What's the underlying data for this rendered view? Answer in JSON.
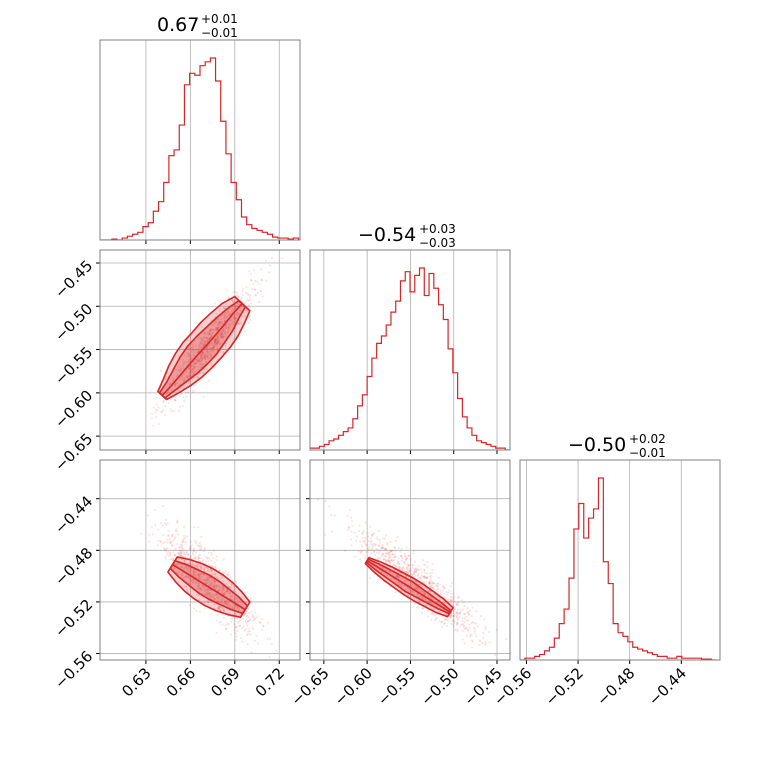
{
  "figure": {
    "accent_color": "#d62728",
    "grid_color": "#b0b0b0",
    "axis_color": "#808080"
  },
  "chart_data": {
    "type": "corner",
    "parameters": 3,
    "color": "#d62728",
    "grid": true,
    "titles": [
      {
        "value": "0.67",
        "plus": "+0.01",
        "minus": "−0.01"
      },
      {
        "value": "−0.54",
        "plus": "+0.03",
        "minus": "−0.03"
      },
      {
        "value": "−0.50",
        "plus": "+0.02",
        "minus": "−0.01"
      }
    ],
    "ranges": [
      [
        0.599,
        0.734
      ],
      [
        -0.666,
        -0.435
      ],
      [
        -0.565,
        -0.41
      ]
    ],
    "ticks": [
      {
        "values": [
          0.63,
          0.66,
          0.69,
          0.72
        ],
        "labels": [
          "0.63",
          "0.66",
          "0.69",
          "0.72"
        ]
      },
      {
        "values": [
          -0.65,
          -0.6,
          -0.55,
          -0.5,
          -0.45
        ],
        "labels": [
          "−0.65",
          "−0.60",
          "−0.55",
          "−0.50",
          "−0.45"
        ]
      },
      {
        "values": [
          -0.56,
          -0.52,
          -0.48,
          -0.44
        ],
        "labels": [
          "−0.56",
          "−0.52",
          "−0.48",
          "−0.44"
        ]
      }
    ],
    "correlations": {
      "1_0": 0.93,
      "2_0": -0.85,
      "2_1": -0.9
    },
    "histograms": [
      {
        "x": [
          0.6,
          0.6035,
          0.607,
          0.6105,
          0.614,
          0.6175,
          0.621,
          0.6245,
          0.628,
          0.6315,
          0.635,
          0.6385,
          0.642,
          0.6455,
          0.649,
          0.6525,
          0.656,
          0.6595,
          0.663,
          0.6665,
          0.67,
          0.6735,
          0.677,
          0.6805,
          0.684,
          0.6875,
          0.691,
          0.6945,
          0.698,
          0.7015,
          0.705,
          0.7085,
          0.712,
          0.7155,
          0.719,
          0.7225,
          0.726,
          0.7295,
          0.733
        ],
        "counts": [
          0,
          0,
          0.005,
          0,
          0.01,
          0.02,
          0.03,
          0.04,
          0.07,
          0.09,
          0.15,
          0.2,
          0.3,
          0.44,
          0.47,
          0.6,
          0.81,
          0.87,
          0.86,
          0.91,
          0.93,
          0.95,
          0.83,
          0.62,
          0.45,
          0.3,
          0.21,
          0.12,
          0.08,
          0.06,
          0.05,
          0.04,
          0.03,
          0.015,
          0.01,
          0.01,
          0.005,
          0.01,
          0
        ]
      },
      {
        "x": [
          -0.666,
          -0.6605,
          -0.655,
          -0.6495,
          -0.644,
          -0.6385,
          -0.633,
          -0.6275,
          -0.622,
          -0.6165,
          -0.611,
          -0.6055,
          -0.6,
          -0.5945,
          -0.589,
          -0.5835,
          -0.578,
          -0.5725,
          -0.567,
          -0.5615,
          -0.556,
          -0.5505,
          -0.545,
          -0.5395,
          -0.534,
          -0.5285,
          -0.523,
          -0.5175,
          -0.512,
          -0.5065,
          -0.501,
          -0.4955,
          -0.49,
          -0.4845,
          -0.479,
          -0.4735,
          -0.468,
          -0.4625,
          -0.457,
          -0.4515,
          -0.446,
          -0.4405
        ],
        "counts": [
          0.01,
          0.01,
          0.02,
          0.03,
          0.05,
          0.06,
          0.08,
          0.1,
          0.12,
          0.17,
          0.24,
          0.3,
          0.4,
          0.5,
          0.58,
          0.62,
          0.68,
          0.75,
          0.81,
          0.92,
          0.97,
          0.86,
          0.95,
          0.99,
          0.84,
          0.96,
          0.88,
          0.79,
          0.71,
          0.55,
          0.42,
          0.28,
          0.18,
          0.12,
          0.08,
          0.05,
          0.04,
          0.03,
          0.02,
          0.01,
          0.01,
          0
        ]
      },
      {
        "x": [
          -0.565,
          -0.5612,
          -0.5574,
          -0.5536,
          -0.5498,
          -0.546,
          -0.5422,
          -0.5384,
          -0.5346,
          -0.5308,
          -0.527,
          -0.5232,
          -0.5194,
          -0.5156,
          -0.5118,
          -0.508,
          -0.5042,
          -0.5004,
          -0.4966,
          -0.4928,
          -0.489,
          -0.4852,
          -0.4814,
          -0.4776,
          -0.4738,
          -0.47,
          -0.4662,
          -0.4624,
          -0.4586,
          -0.4548,
          -0.451,
          -0.4472,
          -0.4434,
          -0.4396,
          -0.4358,
          -0.432,
          -0.4282,
          -0.4244,
          -0.4206,
          -0.4168
        ],
        "counts": [
          0,
          0.01,
          0.01,
          0.02,
          0.03,
          0.05,
          0.07,
          0.12,
          0.2,
          0.28,
          0.45,
          0.72,
          0.86,
          0.67,
          0.78,
          0.83,
          1.0,
          0.54,
          0.42,
          0.2,
          0.15,
          0.13,
          0.1,
          0.07,
          0.06,
          0.05,
          0.04,
          0.03,
          0.02,
          0.02,
          0.01,
          0.01,
          0.02,
          0.01,
          0.01,
          0.01,
          0.01,
          0.005,
          0.005,
          0
        ]
      }
    ],
    "contour_bands": [
      {
        "pair": "1_0",
        "centers": [
          [
            0.641,
            -0.603
          ],
          [
            0.647,
            -0.592
          ],
          [
            0.653,
            -0.58
          ],
          [
            0.659,
            -0.568
          ],
          [
            0.665,
            -0.556
          ],
          [
            0.671,
            -0.545
          ],
          [
            0.677,
            -0.533
          ],
          [
            0.683,
            -0.521
          ],
          [
            0.689,
            -0.508
          ],
          [
            0.695,
            -0.497
          ]
        ],
        "half_widths_inner": [
          0.0025,
          0.004,
          0.006,
          0.008,
          0.009,
          0.009,
          0.008,
          0.007,
          0.005,
          0.003
        ],
        "half_widths_outer": [
          0.004,
          0.007,
          0.01,
          0.012,
          0.013,
          0.013,
          0.013,
          0.012,
          0.01,
          0.007
        ]
      },
      {
        "pair": "2_0",
        "centers": [
          [
            0.648,
            -0.491
          ],
          [
            0.655,
            -0.496
          ],
          [
            0.662,
            -0.501
          ],
          [
            0.669,
            -0.506
          ],
          [
            0.676,
            -0.511
          ],
          [
            0.683,
            -0.516
          ],
          [
            0.69,
            -0.521
          ],
          [
            0.697,
            -0.526
          ]
        ],
        "half_widths_inner": [
          0.003,
          0.005,
          0.006,
          0.007,
          0.007,
          0.006,
          0.005,
          0.003
        ],
        "half_widths_outer": [
          0.006,
          0.009,
          0.011,
          0.012,
          0.012,
          0.011,
          0.009,
          0.006
        ]
      },
      {
        "pair": "2_1",
        "centers": [
          [
            -0.6,
            -0.488
          ],
          [
            -0.588,
            -0.493
          ],
          [
            -0.576,
            -0.498
          ],
          [
            -0.564,
            -0.503
          ],
          [
            -0.552,
            -0.508
          ],
          [
            -0.54,
            -0.513
          ],
          [
            -0.528,
            -0.518
          ],
          [
            -0.516,
            -0.523
          ],
          [
            -0.504,
            -0.528
          ]
        ],
        "half_widths_inner": [
          0.002,
          0.004,
          0.005,
          0.006,
          0.007,
          0.006,
          0.005,
          0.004,
          0.002
        ],
        "half_widths_outer": [
          0.004,
          0.007,
          0.009,
          0.01,
          0.011,
          0.011,
          0.01,
          0.009,
          0.006
        ]
      }
    ]
  }
}
